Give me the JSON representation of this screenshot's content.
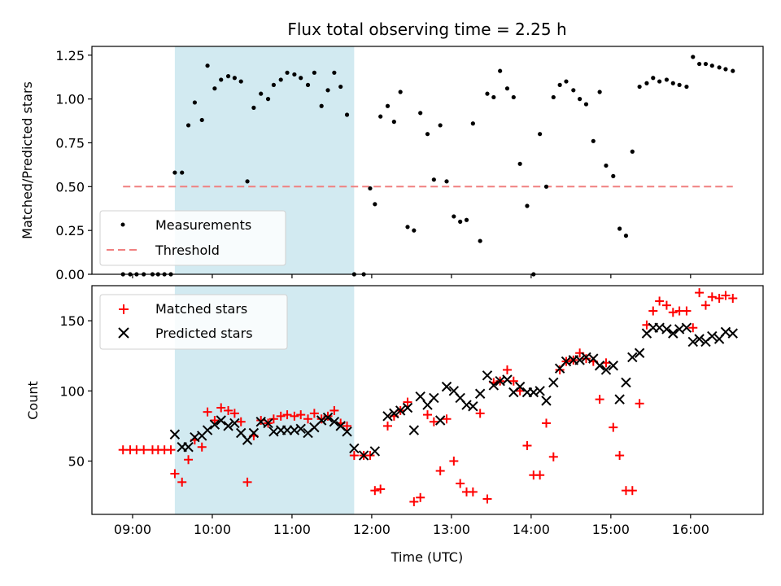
{
  "chart_data": {
    "title": "Flux total observing time = 2.25 h",
    "colors": {
      "measure": "#000000",
      "threshold": "#f08080",
      "matched": "#ff0000",
      "predicted": "#000000",
      "shade": "#add8e6"
    },
    "shaded_interval": [
      9.53,
      11.78
    ],
    "x_ticks": [
      {
        "v": 9,
        "label": "09:00"
      },
      {
        "v": 10,
        "label": "10:00"
      },
      {
        "v": 11,
        "label": "11:00"
      },
      {
        "v": 12,
        "label": "12:00"
      },
      {
        "v": 13,
        "label": "13:00"
      },
      {
        "v": 14,
        "label": "14:00"
      },
      {
        "v": 15,
        "label": "15:00"
      },
      {
        "v": 16,
        "label": "16:00"
      }
    ],
    "xlim": [
      8.49,
      16.91
    ],
    "xlabel": "Time (UTC)",
    "top": {
      "type": "scatter",
      "ylabel": "Matched/Predicted stars",
      "ylim": [
        0,
        1.3
      ],
      "y_ticks": [
        {
          "v": 0.0,
          "label": "0.00"
        },
        {
          "v": 0.25,
          "label": "0.25"
        },
        {
          "v": 0.5,
          "label": "0.50"
        },
        {
          "v": 0.75,
          "label": "0.75"
        },
        {
          "v": 1.0,
          "label": "1.00"
        },
        {
          "v": 1.25,
          "label": "1.25"
        }
      ],
      "threshold": {
        "value": 0.5,
        "x_range": [
          8.88,
          16.53
        ]
      },
      "legend": {
        "location": "lower-left",
        "entries": [
          "Measurements",
          "Threshold"
        ]
      },
      "x": [
        8.88,
        8.97,
        9.05,
        9.14,
        9.25,
        9.32,
        9.4,
        9.48,
        9.53,
        9.62,
        9.7,
        9.78,
        9.87,
        9.94,
        10.03,
        10.11,
        10.2,
        10.28,
        10.36,
        10.44,
        10.52,
        10.61,
        10.7,
        10.77,
        10.86,
        10.94,
        11.03,
        11.11,
        11.2,
        11.28,
        11.37,
        11.45,
        11.53,
        11.61,
        11.69,
        11.78,
        11.9,
        11.98,
        12.04,
        12.11,
        12.2,
        12.28,
        12.36,
        12.45,
        12.53,
        12.61,
        12.7,
        12.78,
        12.86,
        12.94,
        13.03,
        13.11,
        13.19,
        13.27,
        13.36,
        13.45,
        13.53,
        13.61,
        13.7,
        13.78,
        13.86,
        13.95,
        14.03,
        14.11,
        14.19,
        14.28,
        14.36,
        14.44,
        14.53,
        14.61,
        14.69,
        14.78,
        14.86,
        14.94,
        15.03,
        15.11,
        15.19,
        15.27,
        15.36,
        15.45,
        15.53,
        15.61,
        15.7,
        15.78,
        15.86,
        15.95,
        16.03,
        16.11,
        16.19,
        16.27,
        16.36,
        16.44,
        16.53
      ],
      "y": [
        0.0,
        0.0,
        0.0,
        0.0,
        0.0,
        0.0,
        0.0,
        0.0,
        0.58,
        0.58,
        0.85,
        0.98,
        0.88,
        1.19,
        1.06,
        1.11,
        1.13,
        1.12,
        1.1,
        0.53,
        0.95,
        1.03,
        1.0,
        1.08,
        1.11,
        1.15,
        1.14,
        1.12,
        1.08,
        1.15,
        0.96,
        1.05,
        1.15,
        1.07,
        0.91,
        0.0,
        0.0,
        0.49,
        0.4,
        0.9,
        0.96,
        0.87,
        1.04,
        0.27,
        0.25,
        0.92,
        0.8,
        0.54,
        0.85,
        0.53,
        0.33,
        0.3,
        0.31,
        0.86,
        0.19,
        1.03,
        1.01,
        1.16,
        1.06,
        1.01,
        0.63,
        0.39,
        0.0,
        0.8,
        0.5,
        1.01,
        1.08,
        1.1,
        1.05,
        1.0,
        0.97,
        0.76,
        1.04,
        0.62,
        0.56,
        0.26,
        0.22,
        0.7,
        1.07,
        1.09,
        1.12,
        1.1,
        1.11,
        1.09,
        1.08,
        1.07,
        1.24,
        1.2,
        1.2,
        1.19,
        1.18,
        1.17,
        1.16
      ]
    },
    "bottom": {
      "type": "scatter",
      "ylabel": "Count",
      "ylim": [
        12,
        175
      ],
      "y_ticks": [
        {
          "v": 50,
          "label": "50"
        },
        {
          "v": 100,
          "label": "100"
        },
        {
          "v": 150,
          "label": "150"
        }
      ],
      "legend": {
        "location": "upper-left",
        "entries": [
          "Matched stars",
          "Predicted stars"
        ]
      },
      "series": [
        {
          "name": "Matched stars",
          "marker": "+",
          "x": [
            8.88,
            8.97,
            9.05,
            9.14,
            9.25,
            9.32,
            9.4,
            9.48,
            9.53,
            9.62,
            9.7,
            9.78,
            9.87,
            9.94,
            10.03,
            10.11,
            10.2,
            10.28,
            10.36,
            10.44,
            10.52,
            10.61,
            10.7,
            10.77,
            10.86,
            10.94,
            11.03,
            11.11,
            11.2,
            11.28,
            11.37,
            11.45,
            11.53,
            11.61,
            11.69,
            11.78,
            11.9,
            11.98,
            12.04,
            12.11,
            12.2,
            12.28,
            12.36,
            12.45,
            12.53,
            12.61,
            12.7,
            12.78,
            12.86,
            12.94,
            13.03,
            13.11,
            13.19,
            13.27,
            13.36,
            13.45,
            13.53,
            13.61,
            13.7,
            13.78,
            13.86,
            13.95,
            14.03,
            14.11,
            14.19,
            14.28,
            14.36,
            14.44,
            14.53,
            14.61,
            14.69,
            14.78,
            14.86,
            14.94,
            15.03,
            15.11,
            15.19,
            15.27,
            15.36,
            15.45,
            15.53,
            15.61,
            15.7,
            15.78,
            15.86,
            15.95,
            16.03,
            16.11,
            16.19,
            16.27,
            16.36,
            16.44,
            16.53
          ],
          "y": [
            58,
            58,
            58,
            58,
            58,
            58,
            58,
            58,
            41,
            35,
            51,
            65,
            60,
            85,
            79,
            88,
            86,
            84,
            78,
            35,
            68,
            79,
            77,
            80,
            82,
            83,
            82,
            83,
            80,
            84,
            80,
            82,
            86,
            77,
            75,
            54,
            54,
            54,
            29,
            30,
            75,
            82,
            86,
            92,
            21,
            24,
            83,
            78,
            43,
            80,
            50,
            34,
            28,
            28,
            84,
            23,
            106,
            107,
            115,
            107,
            100,
            61,
            40,
            40,
            77,
            53,
            115,
            121,
            122,
            127,
            123,
            121,
            94,
            120,
            74,
            54,
            29,
            29,
            91,
            147,
            157,
            164,
            161,
            156,
            157,
            157,
            145,
            170,
            161,
            167,
            166,
            168,
            166
          ]
        },
        {
          "name": "Predicted stars",
          "marker": "x",
          "x": [
            9.53,
            9.62,
            9.7,
            9.78,
            9.87,
            9.94,
            10.03,
            10.11,
            10.2,
            10.28,
            10.36,
            10.44,
            10.52,
            10.61,
            10.7,
            10.77,
            10.86,
            10.94,
            11.03,
            11.11,
            11.2,
            11.28,
            11.37,
            11.45,
            11.53,
            11.61,
            11.69,
            11.78,
            11.9,
            12.04,
            12.2,
            12.28,
            12.36,
            12.45,
            12.53,
            12.61,
            12.7,
            12.78,
            12.86,
            12.94,
            13.03,
            13.11,
            13.19,
            13.27,
            13.36,
            13.45,
            13.53,
            13.61,
            13.7,
            13.78,
            13.86,
            13.95,
            14.03,
            14.11,
            14.19,
            14.28,
            14.36,
            14.44,
            14.53,
            14.61,
            14.69,
            14.78,
            14.86,
            14.94,
            15.03,
            15.11,
            15.19,
            15.27,
            15.36,
            15.45,
            15.53,
            15.61,
            15.7,
            15.78,
            15.86,
            15.95,
            16.03,
            16.11,
            16.19,
            16.27,
            16.36,
            16.44,
            16.53
          ],
          "y": [
            69,
            60,
            60,
            67,
            68,
            72,
            76,
            79,
            75,
            77,
            70,
            65,
            70,
            78,
            77,
            71,
            72,
            72,
            72,
            73,
            70,
            74,
            79,
            81,
            78,
            75,
            71,
            59,
            54,
            57,
            82,
            84,
            86,
            88,
            72,
            96,
            90,
            95,
            79,
            103,
            100,
            95,
            90,
            89,
            98,
            111,
            104,
            107,
            108,
            99,
            103,
            99,
            99,
            100,
            93,
            106,
            116,
            121,
            122,
            122,
            124,
            123,
            118,
            115,
            118,
            94,
            106,
            124,
            127,
            141,
            145,
            145,
            144,
            141,
            144,
            145,
            135,
            137,
            135,
            139,
            137,
            142,
            141
          ]
        }
      ]
    }
  }
}
